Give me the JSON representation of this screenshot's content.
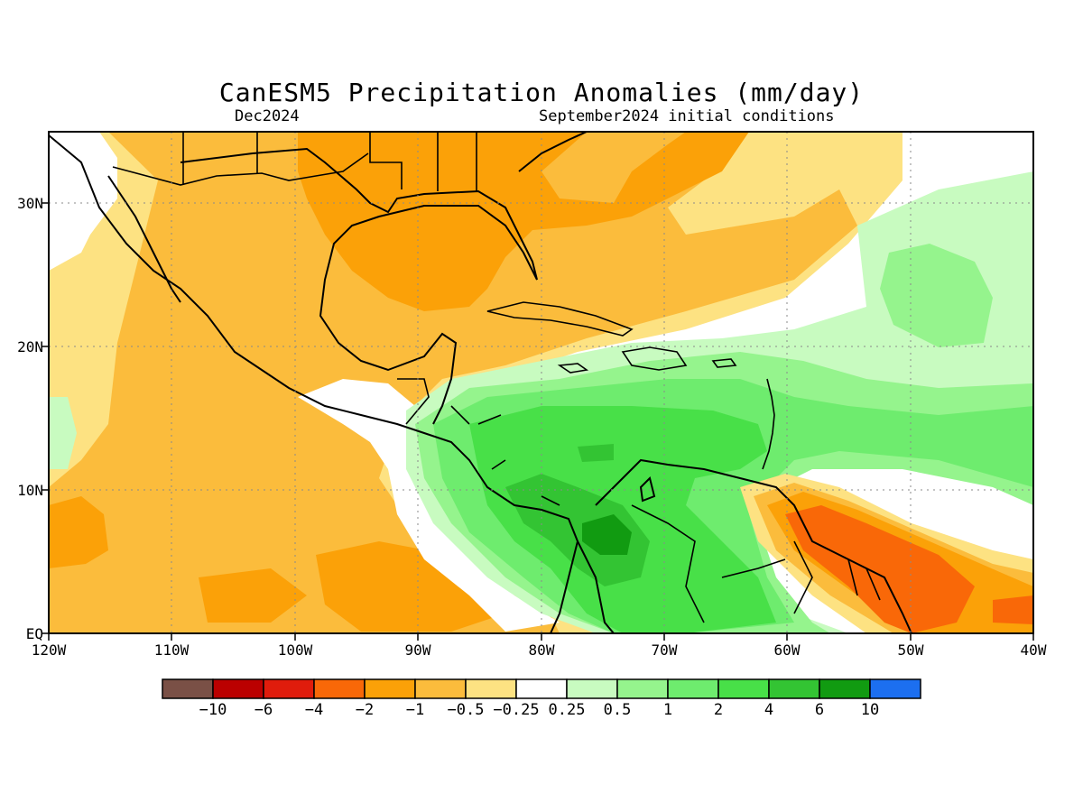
{
  "title": "CanESM5 Precipitation Anomalies (mm/day)",
  "subtitle_left": "Dec2024",
  "subtitle_right": "September2024 initial conditions",
  "map": {
    "region": "Central America / Caribbean",
    "lat_range": [
      0,
      35
    ],
    "lon_range": [
      -120,
      -40
    ],
    "y_axis_labels": [
      "30N",
      "20N",
      "10N",
      "EQ"
    ],
    "x_axis_labels": [
      "120W",
      "110W",
      "100W",
      "90W",
      "80W",
      "70W",
      "60W",
      "50W",
      "40W"
    ]
  },
  "colorbar": {
    "colors": [
      "#7a5046",
      "#bb0000",
      "#e01c0c",
      "#f96808",
      "#fba108",
      "#fbbc3c",
      "#fde282",
      "#ffffff",
      "#c8fbc0",
      "#95f48d",
      "#6eec6e",
      "#48e048",
      "#33c433",
      "#119b11",
      "#1c6ff0"
    ],
    "labels": [
      "−10",
      "−6",
      "−4",
      "−2",
      "−1",
      "−0.5",
      "−0.25",
      "0.25",
      "0.5",
      "1",
      "2",
      "4",
      "6",
      "10"
    ]
  }
}
